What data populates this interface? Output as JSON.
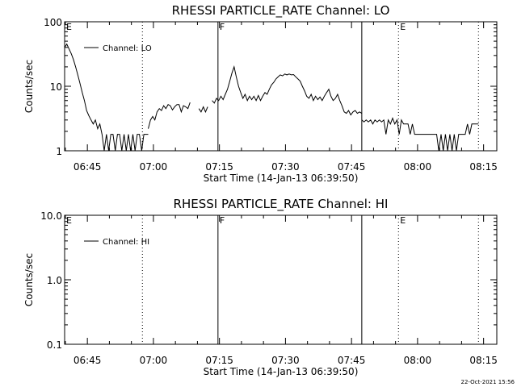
{
  "footer": {
    "timestamp": "22-Oct-2021 15:56"
  },
  "chart_data": [
    {
      "type": "line",
      "title": "RHESSI PARTICLE_RATE Channel: LO",
      "xlabel": "Start Time (14-Jan-13 06:39:50)",
      "ylabel": "Counts/sec",
      "xlim": [
        "06:39:50",
        "08:18:00"
      ],
      "ylim": [
        1,
        100
      ],
      "yscale": "log",
      "xticks": [
        "06:45",
        "07:00",
        "07:15",
        "07:30",
        "07:45",
        "08:00",
        "08:15"
      ],
      "yticks": [
        "1",
        "10",
        "100"
      ],
      "grid": false,
      "legend_position": "top-left",
      "series": [
        {
          "name": "Channel: LO",
          "color": "#000000",
          "segments": [
            [
              [
                "06:39:50",
                40
              ],
              [
                "06:40:20",
                45
              ],
              [
                "06:40:50",
                38
              ],
              [
                "06:41:20",
                32
              ],
              [
                "06:41:50",
                26
              ],
              [
                "06:42:20",
                20
              ],
              [
                "06:42:50",
                15
              ],
              [
                "06:43:20",
                11
              ],
              [
                "06:43:50",
                8
              ],
              [
                "06:44:20",
                6
              ],
              [
                "06:44:50",
                4.2
              ],
              [
                "06:45:20",
                3.5
              ],
              [
                "06:45:50",
                3.0
              ],
              [
                "06:46:20",
                2.6
              ],
              [
                "06:46:50",
                3.0
              ],
              [
                "06:47:20",
                2.2
              ],
              [
                "06:47:50",
                2.6
              ],
              [
                "06:48:20",
                1.8
              ],
              [
                "06:48:50",
                1.0
              ],
              [
                "06:49:20",
                1.8
              ],
              [
                "06:49:50",
                1.0
              ],
              [
                "06:50:20",
                1.8
              ],
              [
                "06:50:50",
                1.8
              ],
              [
                "06:51:20",
                1.0
              ],
              [
                "06:51:50",
                1.8
              ],
              [
                "06:52:20",
                1.8
              ],
              [
                "06:52:50",
                1.0
              ],
              [
                "06:53:20",
                1.8
              ],
              [
                "06:53:50",
                1.0
              ],
              [
                "06:54:20",
                1.8
              ],
              [
                "06:54:50",
                1.0
              ],
              [
                "06:55:20",
                1.8
              ],
              [
                "06:55:50",
                1.0
              ],
              [
                "06:56:20",
                1.8
              ],
              [
                "06:56:50",
                1.8
              ],
              [
                "06:57:20",
                1.0
              ],
              [
                "06:57:50",
                1.8
              ],
              [
                "06:58:20",
                1.8
              ],
              [
                "06:58:50",
                1.8
              ]
            ],
            [
              [
                "06:58:50",
                2.2
              ],
              [
                "06:59:20",
                3.0
              ],
              [
                "06:59:50",
                3.4
              ],
              [
                "07:00:20",
                3.0
              ],
              [
                "07:00:50",
                4.0
              ],
              [
                "07:01:20",
                4.5
              ],
              [
                "07:01:50",
                4.2
              ],
              [
                "07:02:20",
                5.0
              ],
              [
                "07:02:50",
                4.5
              ],
              [
                "07:03:20",
                5.2
              ],
              [
                "07:03:50",
                5.0
              ],
              [
                "07:04:20",
                4.3
              ],
              [
                "07:04:50",
                4.8
              ],
              [
                "07:05:20",
                5.2
              ],
              [
                "07:05:50",
                5.2
              ],
              [
                "07:06:20",
                4.0
              ],
              [
                "07:06:50",
                5.0
              ],
              [
                "07:07:20",
                4.8
              ],
              [
                "07:07:50",
                4.5
              ],
              [
                "07:08:20",
                5.6
              ]
            ],
            [
              [
                "07:10:20",
                4.5
              ],
              [
                "07:10:50",
                4.0
              ],
              [
                "07:11:20",
                4.8
              ],
              [
                "07:11:50",
                4.0
              ],
              [
                "07:12:20",
                4.8
              ]
            ],
            [
              [
                "07:13:20",
                6.0
              ],
              [
                "07:13:50",
                5.5
              ],
              [
                "07:14:20",
                6.5
              ],
              [
                "07:14:50",
                6.0
              ],
              [
                "07:15:20",
                7.0
              ],
              [
                "07:15:50",
                6.2
              ],
              [
                "07:16:20",
                7.5
              ],
              [
                "07:16:50",
                9.0
              ],
              [
                "07:17:20",
                12.0
              ],
              [
                "07:17:50",
                16.0
              ],
              [
                "07:18:20",
                20.0
              ],
              [
                "07:18:50",
                14.0
              ],
              [
                "07:19:20",
                10.0
              ],
              [
                "07:19:50",
                8.0
              ],
              [
                "07:20:20",
                6.5
              ],
              [
                "07:20:50",
                7.5
              ],
              [
                "07:21:20",
                6.0
              ],
              [
                "07:21:50",
                7.0
              ],
              [
                "07:22:20",
                6.2
              ],
              [
                "07:22:50",
                7.0
              ],
              [
                "07:23:20",
                6.0
              ],
              [
                "07:23:50",
                7.2
              ],
              [
                "07:24:20",
                6.0
              ],
              [
                "07:24:50",
                7.0
              ],
              [
                "07:25:20",
                8.0
              ],
              [
                "07:25:50",
                7.5
              ],
              [
                "07:26:20",
                9.0
              ],
              [
                "07:26:50",
                10.5
              ],
              [
                "07:27:20",
                11.5
              ],
              [
                "07:27:50",
                13.0
              ],
              [
                "07:28:20",
                14.0
              ],
              [
                "07:28:50",
                15.0
              ],
              [
                "07:29:20",
                14.5
              ],
              [
                "07:29:50",
                15.5
              ],
              [
                "07:30:20",
                15.0
              ],
              [
                "07:30:50",
                15.5
              ],
              [
                "07:31:20",
                15.0
              ],
              [
                "07:31:50",
                15.2
              ],
              [
                "07:32:20",
                14.0
              ],
              [
                "07:32:50",
                13.0
              ],
              [
                "07:33:20",
                12.0
              ],
              [
                "07:33:50",
                10.0
              ],
              [
                "07:34:20",
                8.5
              ],
              [
                "07:34:50",
                7.0
              ],
              [
                "07:35:20",
                6.5
              ],
              [
                "07:35:50",
                7.5
              ],
              [
                "07:36:20",
                6.0
              ],
              [
                "07:36:50",
                7.0
              ],
              [
                "07:37:20",
                6.2
              ],
              [
                "07:37:50",
                6.8
              ],
              [
                "07:38:20",
                6.0
              ],
              [
                "07:38:50",
                7.0
              ],
              [
                "07:39:20",
                8.0
              ],
              [
                "07:39:50",
                9.0
              ],
              [
                "07:40:20",
                7.0
              ],
              [
                "07:40:50",
                6.0
              ],
              [
                "07:41:20",
                6.5
              ],
              [
                "07:41:50",
                7.5
              ],
              [
                "07:42:20",
                6.0
              ],
              [
                "07:42:50",
                5.0
              ],
              [
                "07:43:20",
                4.0
              ],
              [
                "07:43:50",
                3.8
              ],
              [
                "07:44:20",
                4.2
              ],
              [
                "07:44:50",
                3.6
              ],
              [
                "07:45:20",
                4.0
              ],
              [
                "07:45:50",
                4.2
              ],
              [
                "07:46:20",
                3.8
              ],
              [
                "07:46:50",
                4.0
              ],
              [
                "07:47:20",
                3.8
              ]
            ],
            [
              [
                "07:47:20",
                3.0
              ],
              [
                "07:47:50",
                2.8
              ],
              [
                "07:48:20",
                3.0
              ],
              [
                "07:48:50",
                2.8
              ],
              [
                "07:49:20",
                3.0
              ],
              [
                "07:49:50",
                2.6
              ],
              [
                "07:50:20",
                3.0
              ],
              [
                "07:50:50",
                2.8
              ],
              [
                "07:51:20",
                3.0
              ],
              [
                "07:51:50",
                2.8
              ],
              [
                "07:52:20",
                3.0
              ],
              [
                "07:52:50",
                1.8
              ],
              [
                "07:53:20",
                3.0
              ],
              [
                "07:53:50",
                2.6
              ],
              [
                "07:54:20",
                3.2
              ],
              [
                "07:54:50",
                2.6
              ],
              [
                "07:55:20",
                3.0
              ],
              [
                "07:55:50",
                1.8
              ],
              [
                "07:56:20",
                3.0
              ],
              [
                "07:56:50",
                2.6
              ],
              [
                "07:57:20",
                2.6
              ],
              [
                "07:57:50",
                2.6
              ],
              [
                "07:58:20",
                1.8
              ],
              [
                "07:58:50",
                2.6
              ],
              [
                "07:59:20",
                1.8
              ],
              [
                "07:59:50",
                1.8
              ],
              [
                "08:00:20",
                1.8
              ],
              [
                "08:00:50",
                1.8
              ],
              [
                "08:01:20",
                1.8
              ],
              [
                "08:01:50",
                1.8
              ],
              [
                "08:02:20",
                1.8
              ],
              [
                "08:02:50",
                1.8
              ],
              [
                "08:03:20",
                1.8
              ],
              [
                "08:03:50",
                1.8
              ],
              [
                "08:04:20",
                1.8
              ],
              [
                "08:04:50",
                1.0
              ],
              [
                "08:05:20",
                1.8
              ],
              [
                "08:05:50",
                1.0
              ],
              [
                "08:06:20",
                1.8
              ],
              [
                "08:06:50",
                1.0
              ],
              [
                "08:07:20",
                1.8
              ],
              [
                "08:07:50",
                1.0
              ],
              [
                "08:08:20",
                1.8
              ],
              [
                "08:08:50",
                1.0
              ],
              [
                "08:09:20",
                1.8
              ],
              [
                "08:09:50",
                1.8
              ],
              [
                "08:10:20",
                1.8
              ],
              [
                "08:10:50",
                1.8
              ],
              [
                "08:11:20",
                2.6
              ],
              [
                "08:11:50",
                1.8
              ],
              [
                "08:12:20",
                2.6
              ],
              [
                "08:12:50",
                2.6
              ],
              [
                "08:13:20",
                2.6
              ],
              [
                "08:13:50",
                2.6
              ]
            ]
          ]
        }
      ],
      "markers": [
        {
          "label": "E",
          "time": "06:39:50",
          "style": "solid"
        },
        {
          "label": "",
          "time": "06:57:30",
          "style": "dotted"
        },
        {
          "label": "F",
          "time": "07:14:40",
          "style": "solid"
        },
        {
          "label": "",
          "time": "07:47:20",
          "style": "solid"
        },
        {
          "label": "E",
          "time": "07:55:40",
          "style": "dotted"
        },
        {
          "label": "",
          "time": "08:13:50",
          "style": "dotted"
        }
      ]
    },
    {
      "type": "line",
      "title": "RHESSI PARTICLE_RATE Channel: HI",
      "xlabel": "Start Time (14-Jan-13 06:39:50)",
      "ylabel": "Counts/sec",
      "xlim": [
        "06:39:50",
        "08:18:00"
      ],
      "ylim": [
        0.1,
        10
      ],
      "yscale": "log",
      "xticks": [
        "06:45",
        "07:00",
        "07:15",
        "07:30",
        "07:45",
        "08:00",
        "08:15"
      ],
      "yticks": [
        "0.1",
        "1.0",
        "10.0"
      ],
      "grid": false,
      "legend_position": "top-left",
      "series": [
        {
          "name": "Channel: HI",
          "color": "#000000",
          "segments": []
        }
      ],
      "markers": [
        {
          "label": "E",
          "time": "06:39:50",
          "style": "solid"
        },
        {
          "label": "",
          "time": "06:57:30",
          "style": "dotted"
        },
        {
          "label": "F",
          "time": "07:14:40",
          "style": "solid"
        },
        {
          "label": "",
          "time": "07:47:20",
          "style": "solid"
        },
        {
          "label": "E",
          "time": "07:55:40",
          "style": "dotted"
        },
        {
          "label": "",
          "time": "08:13:50",
          "style": "dotted"
        }
      ]
    }
  ]
}
